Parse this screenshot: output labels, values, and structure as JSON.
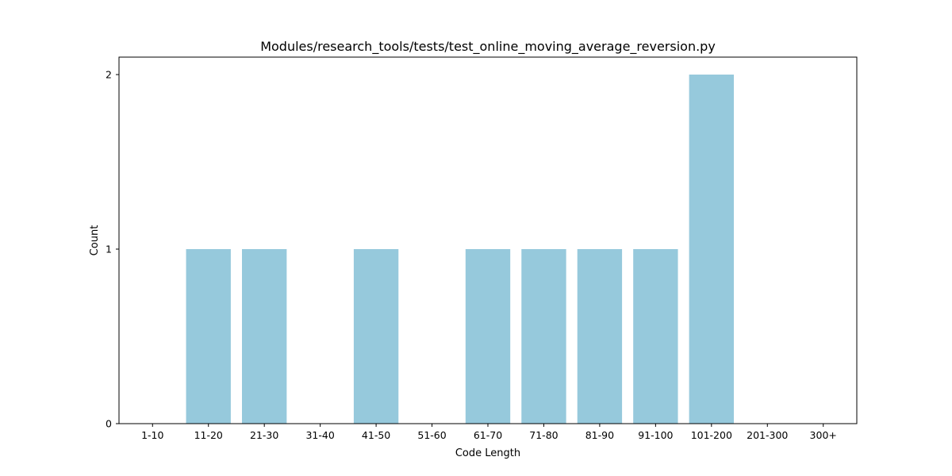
{
  "chart_data": {
    "type": "bar",
    "title": "Modules/research_tools/tests/test_online_moving_average_reversion.py",
    "xlabel": "Code Length",
    "ylabel": "Count",
    "categories": [
      "1-10",
      "11-20",
      "21-30",
      "31-40",
      "41-50",
      "51-60",
      "61-70",
      "71-80",
      "81-90",
      "91-100",
      "101-200",
      "201-300",
      "300+"
    ],
    "values": [
      0,
      1,
      1,
      0,
      1,
      0,
      1,
      1,
      1,
      1,
      2,
      0,
      0
    ],
    "ylim": [
      0,
      2.1
    ],
    "yticks": [
      0,
      1,
      2
    ],
    "bar_color": "#96c9dc",
    "grid": false,
    "legend": "none"
  }
}
